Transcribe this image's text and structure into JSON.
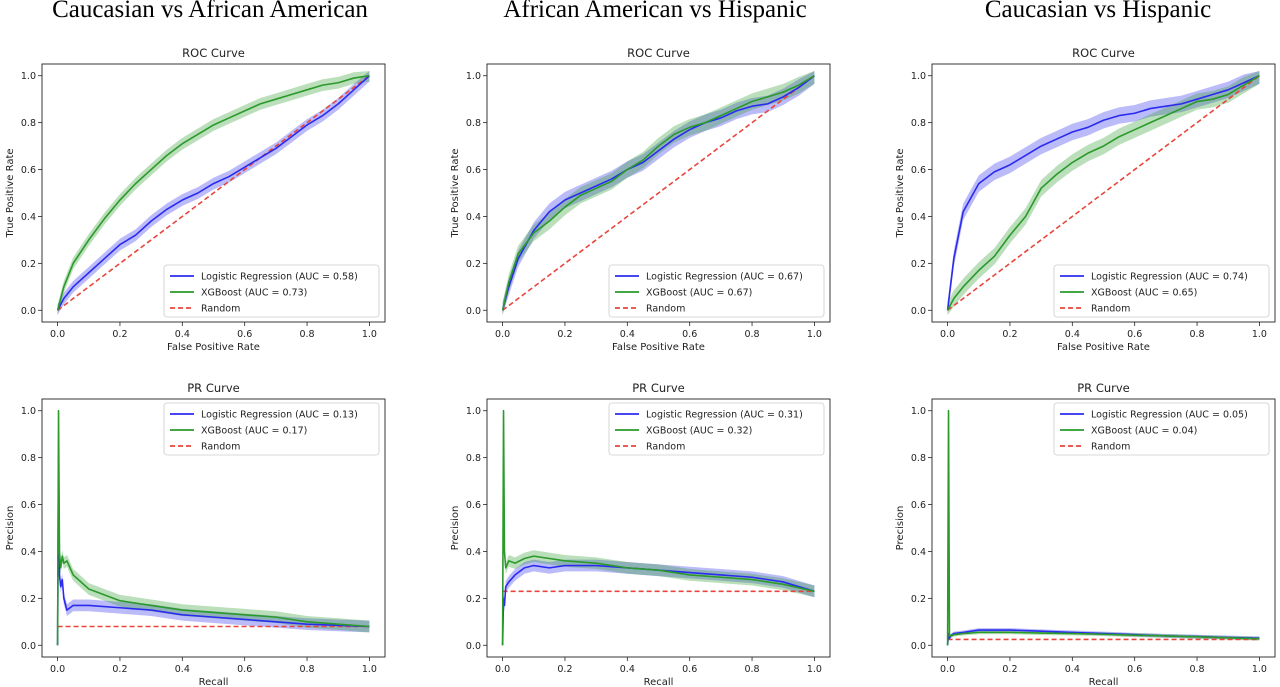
{
  "column_titles": [
    "Caucasian vs African American",
    "African American vs Hispanic",
    "Caucasian vs Hispanic"
  ],
  "colors": {
    "logistic": "#2b2bf0",
    "xgboost": "#2a9a2a",
    "random": "#e8463c"
  },
  "chart_data": [
    {
      "type": "line",
      "title": "ROC Curve",
      "xlabel": "False Positive Rate",
      "ylabel": "True Positive Rate",
      "xlim": [
        -0.05,
        1.05
      ],
      "ylim": [
        -0.05,
        1.05
      ],
      "xticks": [
        "0.0",
        "0.2",
        "0.4",
        "0.6",
        "0.8",
        "1.0"
      ],
      "yticks": [
        "0.0",
        "0.2",
        "0.4",
        "0.6",
        "0.8",
        "1.0"
      ],
      "legend": "lower-right",
      "band": 0.025,
      "series": [
        {
          "name": "Logistic Regression (AUC = 0.58)",
          "color": "#2b2bf0",
          "x": [
            0,
            0.02,
            0.05,
            0.1,
            0.15,
            0.2,
            0.25,
            0.3,
            0.35,
            0.4,
            0.45,
            0.5,
            0.55,
            0.6,
            0.65,
            0.7,
            0.75,
            0.8,
            0.85,
            0.9,
            0.95,
            1.0
          ],
          "y": [
            0,
            0.05,
            0.1,
            0.16,
            0.22,
            0.28,
            0.32,
            0.38,
            0.43,
            0.47,
            0.5,
            0.54,
            0.57,
            0.61,
            0.65,
            0.69,
            0.74,
            0.79,
            0.83,
            0.88,
            0.94,
            1.0
          ]
        },
        {
          "name": "XGBoost (AUC = 0.73)",
          "color": "#2a9a2a",
          "x": [
            0,
            0.02,
            0.05,
            0.1,
            0.15,
            0.2,
            0.25,
            0.3,
            0.35,
            0.4,
            0.45,
            0.5,
            0.55,
            0.6,
            0.65,
            0.7,
            0.75,
            0.8,
            0.85,
            0.9,
            0.95,
            1.0
          ],
          "y": [
            0,
            0.1,
            0.2,
            0.3,
            0.39,
            0.47,
            0.54,
            0.6,
            0.66,
            0.71,
            0.75,
            0.79,
            0.82,
            0.85,
            0.88,
            0.9,
            0.92,
            0.94,
            0.96,
            0.97,
            0.99,
            1.0
          ]
        },
        {
          "name": "Random",
          "color": "#e8463c",
          "dashed": true,
          "x": [
            0,
            1
          ],
          "y": [
            0,
            1
          ]
        }
      ]
    },
    {
      "type": "line",
      "title": "ROC Curve",
      "xlabel": "False Positive Rate",
      "ylabel": "True Positive Rate",
      "xlim": [
        -0.05,
        1.05
      ],
      "ylim": [
        -0.05,
        1.05
      ],
      "xticks": [
        "0.0",
        "0.2",
        "0.4",
        "0.6",
        "0.8",
        "1.0"
      ],
      "yticks": [
        "0.0",
        "0.2",
        "0.4",
        "0.6",
        "0.8",
        "1.0"
      ],
      "legend": "lower-right",
      "band": 0.035,
      "series": [
        {
          "name": "Logistic Regression (AUC = 0.67)",
          "color": "#2b2bf0",
          "x": [
            0,
            0.02,
            0.05,
            0.1,
            0.15,
            0.2,
            0.25,
            0.3,
            0.35,
            0.4,
            0.45,
            0.5,
            0.55,
            0.6,
            0.65,
            0.7,
            0.75,
            0.8,
            0.85,
            0.9,
            0.95,
            1.0
          ],
          "y": [
            0,
            0.1,
            0.22,
            0.34,
            0.42,
            0.47,
            0.5,
            0.53,
            0.56,
            0.6,
            0.63,
            0.68,
            0.73,
            0.77,
            0.8,
            0.82,
            0.85,
            0.87,
            0.88,
            0.91,
            0.95,
            1.0
          ]
        },
        {
          "name": "XGBoost (AUC = 0.67)",
          "color": "#2a9a2a",
          "x": [
            0,
            0.02,
            0.05,
            0.1,
            0.15,
            0.2,
            0.25,
            0.3,
            0.35,
            0.4,
            0.45,
            0.5,
            0.55,
            0.6,
            0.65,
            0.7,
            0.75,
            0.8,
            0.85,
            0.9,
            0.95,
            1.0
          ],
          "y": [
            0,
            0.12,
            0.24,
            0.33,
            0.38,
            0.44,
            0.49,
            0.52,
            0.55,
            0.6,
            0.64,
            0.7,
            0.75,
            0.78,
            0.8,
            0.83,
            0.86,
            0.89,
            0.91,
            0.93,
            0.96,
            1.0
          ]
        },
        {
          "name": "Random",
          "color": "#e8463c",
          "dashed": true,
          "x": [
            0,
            1
          ],
          "y": [
            0,
            1
          ]
        }
      ]
    },
    {
      "type": "line",
      "title": "ROC Curve",
      "xlabel": "False Positive Rate",
      "ylabel": "True Positive Rate",
      "xlim": [
        -0.05,
        1.05
      ],
      "ylim": [
        -0.05,
        1.05
      ],
      "xticks": [
        "0.0",
        "0.2",
        "0.4",
        "0.6",
        "0.8",
        "1.0"
      ],
      "yticks": [
        "0.0",
        "0.2",
        "0.4",
        "0.6",
        "0.8",
        "1.0"
      ],
      "legend": "lower-right",
      "band": 0.035,
      "series": [
        {
          "name": "Logistic Regression (AUC = 0.74)",
          "color": "#2b2bf0",
          "x": [
            0,
            0.02,
            0.05,
            0.1,
            0.15,
            0.2,
            0.25,
            0.3,
            0.35,
            0.4,
            0.45,
            0.5,
            0.55,
            0.6,
            0.65,
            0.7,
            0.75,
            0.8,
            0.85,
            0.9,
            0.95,
            1.0
          ],
          "y": [
            0,
            0.22,
            0.42,
            0.54,
            0.59,
            0.62,
            0.66,
            0.7,
            0.73,
            0.76,
            0.78,
            0.81,
            0.83,
            0.84,
            0.86,
            0.87,
            0.88,
            0.9,
            0.92,
            0.94,
            0.97,
            1.0
          ]
        },
        {
          "name": "XGBoost (AUC = 0.65)",
          "color": "#2a9a2a",
          "x": [
            0,
            0.02,
            0.05,
            0.1,
            0.15,
            0.2,
            0.25,
            0.3,
            0.35,
            0.4,
            0.45,
            0.5,
            0.55,
            0.6,
            0.65,
            0.7,
            0.75,
            0.8,
            0.85,
            0.9,
            0.95,
            1.0
          ],
          "y": [
            0,
            0.05,
            0.1,
            0.17,
            0.23,
            0.32,
            0.4,
            0.52,
            0.58,
            0.63,
            0.67,
            0.7,
            0.74,
            0.77,
            0.8,
            0.83,
            0.86,
            0.89,
            0.9,
            0.92,
            0.96,
            1.0
          ]
        },
        {
          "name": "Random",
          "color": "#e8463c",
          "dashed": true,
          "x": [
            0,
            1
          ],
          "y": [
            0,
            1
          ]
        }
      ]
    },
    {
      "type": "line",
      "title": "PR Curve",
      "xlabel": "Recall",
      "ylabel": "Precision",
      "xlim": [
        -0.05,
        1.05
      ],
      "ylim": [
        -0.05,
        1.05
      ],
      "xticks": [
        "0.0",
        "0.2",
        "0.4",
        "0.6",
        "0.8",
        "1.0"
      ],
      "yticks": [
        "0.0",
        "0.2",
        "0.4",
        "0.6",
        "0.8",
        "1.0"
      ],
      "legend": "upper-right",
      "band": 0.025,
      "series": [
        {
          "name": "Logistic Regression (AUC = 0.13)",
          "color": "#2b2bf0",
          "x": [
            0,
            0.003,
            0.006,
            0.01,
            0.015,
            0.02,
            0.03,
            0.05,
            0.1,
            0.2,
            0.3,
            0.4,
            0.5,
            0.6,
            0.7,
            0.8,
            0.9,
            1.0
          ],
          "y": [
            0.0,
            0.8,
            0.3,
            0.25,
            0.28,
            0.2,
            0.15,
            0.17,
            0.17,
            0.16,
            0.15,
            0.13,
            0.12,
            0.11,
            0.1,
            0.09,
            0.085,
            0.08
          ]
        },
        {
          "name": "XGBoost (AUC = 0.17)",
          "color": "#2a9a2a",
          "x": [
            0,
            0.003,
            0.006,
            0.01,
            0.015,
            0.02,
            0.03,
            0.05,
            0.1,
            0.2,
            0.3,
            0.4,
            0.5,
            0.6,
            0.7,
            0.8,
            0.9,
            1.0
          ],
          "y": [
            0.0,
            1.0,
            0.4,
            0.33,
            0.38,
            0.35,
            0.36,
            0.3,
            0.24,
            0.19,
            0.17,
            0.15,
            0.14,
            0.13,
            0.12,
            0.1,
            0.09,
            0.08
          ]
        },
        {
          "name": "Random",
          "color": "#e8463c",
          "dashed": true,
          "x": [
            0,
            1
          ],
          "y": [
            0.08,
            0.08
          ]
        }
      ]
    },
    {
      "type": "line",
      "title": "PR Curve",
      "xlabel": "Recall",
      "ylabel": "Precision",
      "xlim": [
        -0.05,
        1.05
      ],
      "ylim": [
        -0.05,
        1.05
      ],
      "xticks": [
        "0.0",
        "0.2",
        "0.4",
        "0.6",
        "0.8",
        "1.0"
      ],
      "yticks": [
        "0.0",
        "0.2",
        "0.4",
        "0.6",
        "0.8",
        "1.0"
      ],
      "legend": "upper-right",
      "band": 0.025,
      "series": [
        {
          "name": "Logistic Regression (AUC = 0.31)",
          "color": "#2b2bf0",
          "x": [
            0,
            0.003,
            0.006,
            0.01,
            0.02,
            0.04,
            0.07,
            0.1,
            0.15,
            0.2,
            0.3,
            0.4,
            0.5,
            0.6,
            0.7,
            0.8,
            0.9,
            1.0
          ],
          "y": [
            0.0,
            0.2,
            0.17,
            0.25,
            0.27,
            0.3,
            0.33,
            0.34,
            0.33,
            0.34,
            0.34,
            0.33,
            0.32,
            0.31,
            0.3,
            0.29,
            0.27,
            0.23
          ]
        },
        {
          "name": "XGBoost (AUC = 0.32)",
          "color": "#2a9a2a",
          "x": [
            0,
            0.003,
            0.006,
            0.01,
            0.02,
            0.04,
            0.07,
            0.1,
            0.15,
            0.2,
            0.3,
            0.4,
            0.5,
            0.6,
            0.7,
            0.8,
            0.9,
            1.0
          ],
          "y": [
            0.0,
            1.0,
            0.4,
            0.33,
            0.36,
            0.35,
            0.37,
            0.38,
            0.37,
            0.36,
            0.35,
            0.33,
            0.32,
            0.3,
            0.29,
            0.28,
            0.26,
            0.23
          ]
        },
        {
          "name": "Random",
          "color": "#e8463c",
          "dashed": true,
          "x": [
            0,
            1
          ],
          "y": [
            0.23,
            0.23
          ]
        }
      ]
    },
    {
      "type": "line",
      "title": "PR Curve",
      "xlabel": "Recall",
      "ylabel": "Precision",
      "xlim": [
        -0.05,
        1.05
      ],
      "ylim": [
        -0.05,
        1.05
      ],
      "xticks": [
        "0.0",
        "0.2",
        "0.4",
        "0.6",
        "0.8",
        "1.0"
      ],
      "yticks": [
        "0.0",
        "0.2",
        "0.4",
        "0.6",
        "0.8",
        "1.0"
      ],
      "legend": "upper-right",
      "band": 0.008,
      "series": [
        {
          "name": "Logistic Regression (AUC = 0.05)",
          "color": "#2b2bf0",
          "x": [
            0,
            0.003,
            0.006,
            0.01,
            0.02,
            0.05,
            0.1,
            0.2,
            0.3,
            0.4,
            0.5,
            0.6,
            0.7,
            0.8,
            0.9,
            1.0
          ],
          "y": [
            0.0,
            0.05,
            0.03,
            0.04,
            0.05,
            0.055,
            0.065,
            0.065,
            0.06,
            0.055,
            0.05,
            0.045,
            0.04,
            0.037,
            0.033,
            0.03
          ]
        },
        {
          "name": "XGBoost (AUC = 0.04)",
          "color": "#2a9a2a",
          "x": [
            0,
            0.003,
            0.006,
            0.01,
            0.02,
            0.05,
            0.1,
            0.2,
            0.3,
            0.4,
            0.5,
            0.6,
            0.7,
            0.8,
            0.9,
            1.0
          ],
          "y": [
            0.0,
            1.0,
            0.04,
            0.04,
            0.045,
            0.05,
            0.055,
            0.055,
            0.052,
            0.05,
            0.047,
            0.043,
            0.04,
            0.036,
            0.032,
            0.028
          ]
        },
        {
          "name": "Random",
          "color": "#e8463c",
          "dashed": true,
          "x": [
            0,
            1
          ],
          "y": [
            0.025,
            0.025
          ]
        }
      ]
    }
  ]
}
